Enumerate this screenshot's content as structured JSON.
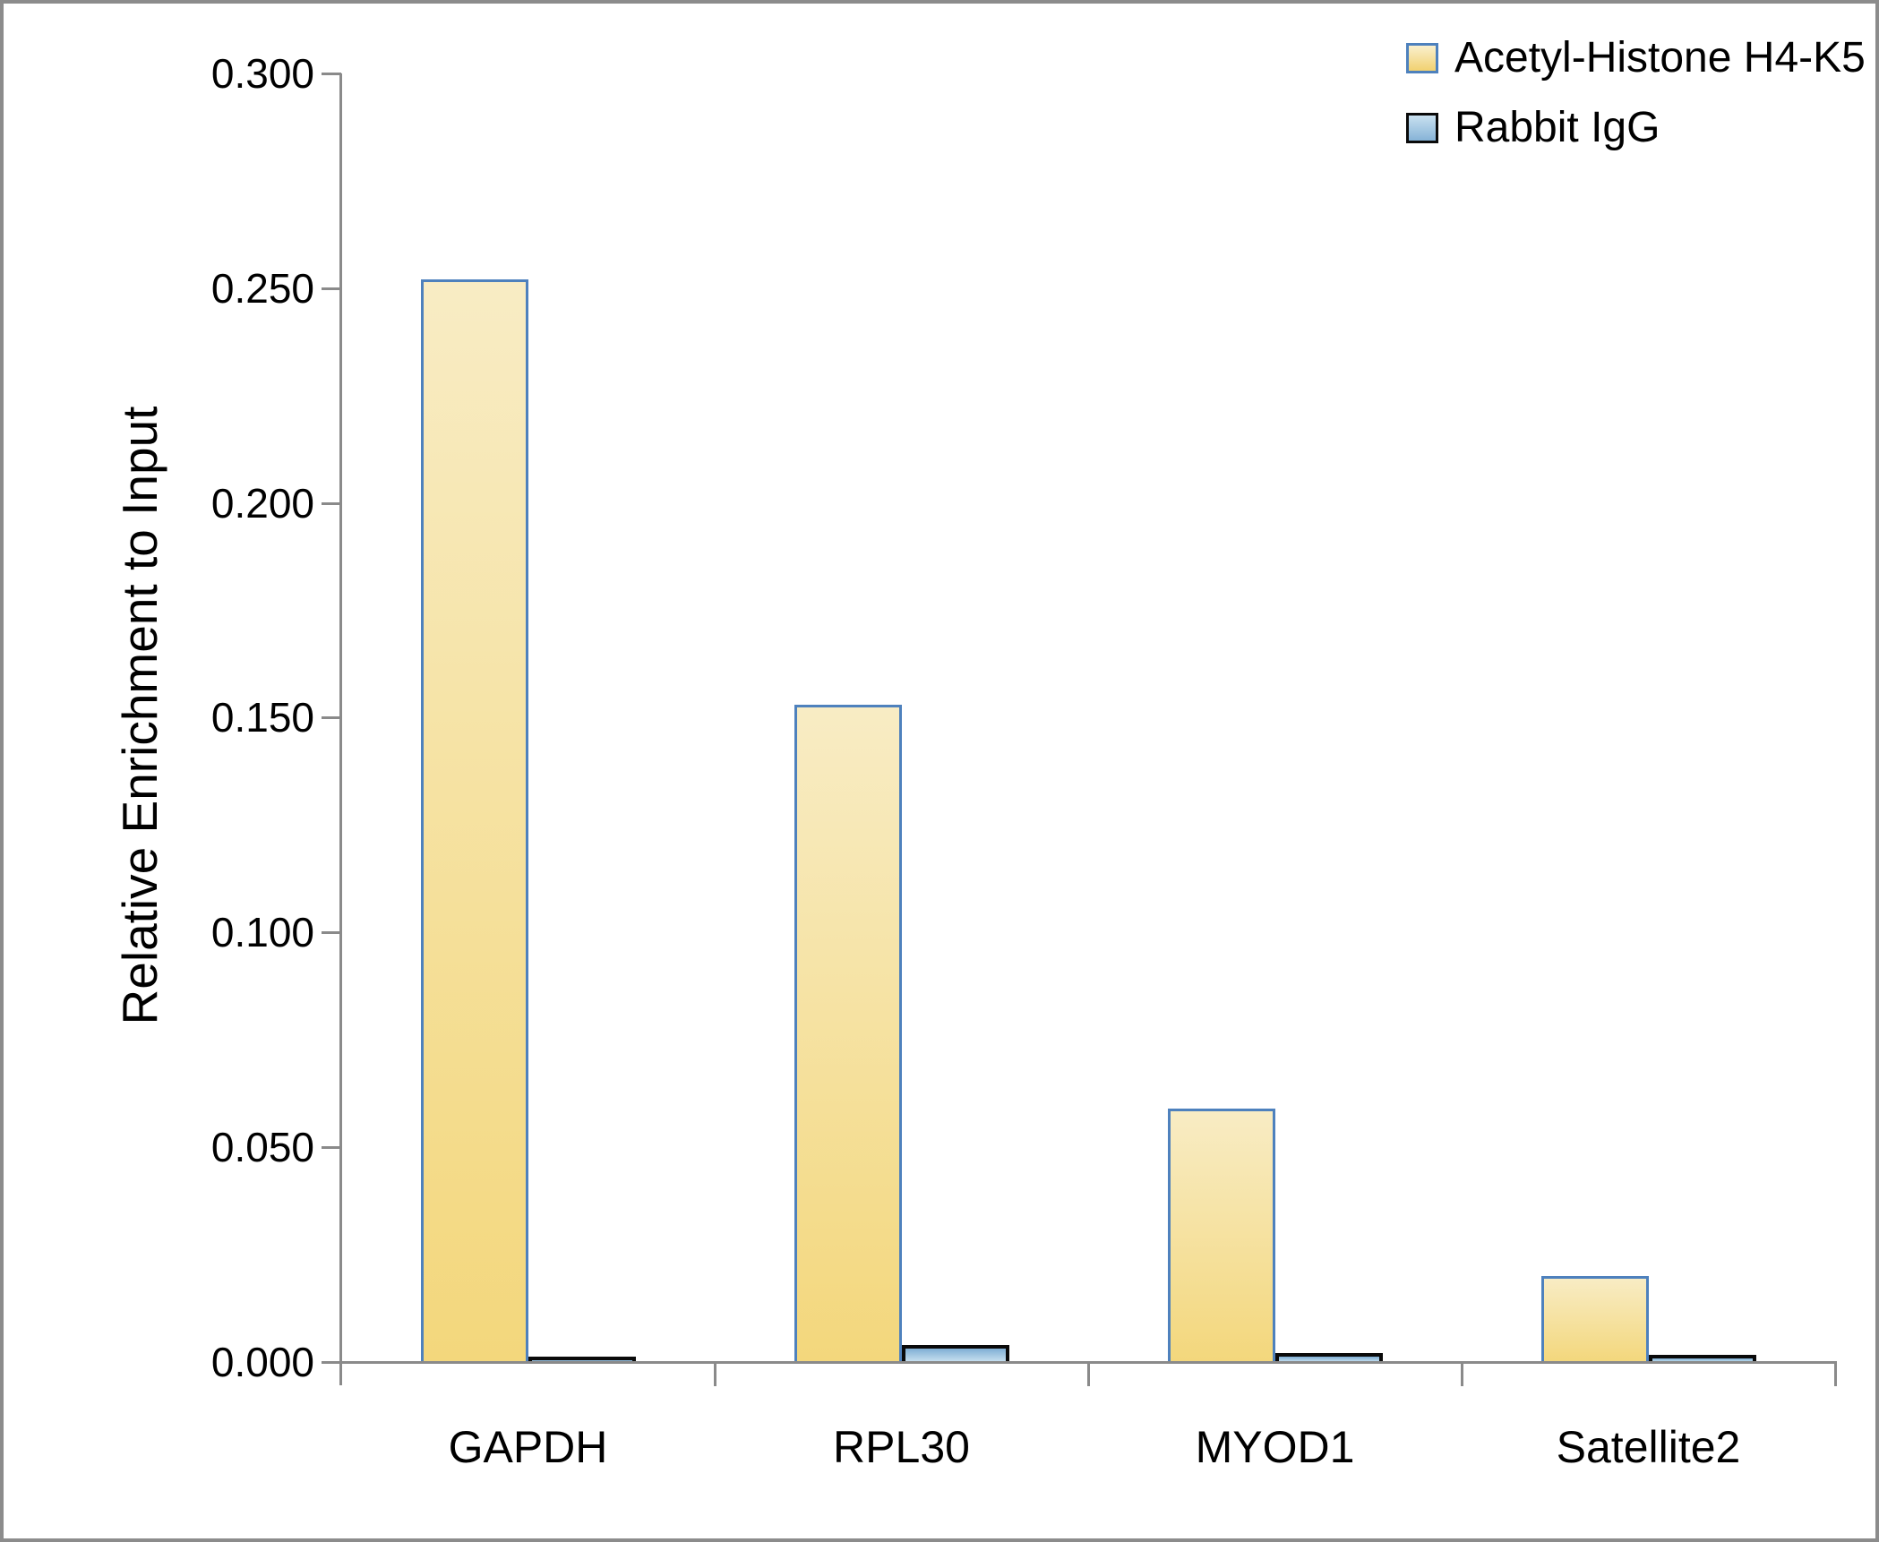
{
  "frame": {
    "background": "#FFFFFF",
    "border_color": "#8C8C8C"
  },
  "axes": {
    "axis_color": "#8A8A8A",
    "text_color": "#000000"
  },
  "legend": {
    "items": [
      {
        "label": "Acetyl-Histone H4-K5"
      },
      {
        "label": "Rabbit IgG"
      }
    ]
  },
  "chart_data": {
    "type": "bar",
    "title": "",
    "xlabel": "",
    "ylabel": "Relative Enrichment to Input",
    "categories": [
      "GAPDH",
      "RPL30",
      "MYOD1",
      "Satellite2"
    ],
    "series": [
      {
        "name": "Acetyl-Histone H4-K5",
        "values": [
          0.252,
          0.153,
          0.059,
          0.02
        ],
        "fill_top": "#F8ECC4",
        "fill_bottom": "#F3D77C",
        "border": "#4E81BD",
        "border_width": 3,
        "legend_top": "#FAF0CE",
        "legend_bottom": "#F1D170"
      },
      {
        "name": "Rabbit IgG",
        "values": [
          0.0012,
          0.004,
          0.002,
          0.0016
        ],
        "fill_top": "#7EAED4",
        "fill_bottom": "#C9E2F1",
        "border": "#0A0A0A",
        "border_width": 4,
        "legend_top": "#C9E1F0",
        "legend_bottom": "#86B3D7"
      }
    ],
    "ylim": [
      0.0,
      0.3
    ],
    "ytick_step": 0.05,
    "ytick_labels": [
      "0.000",
      "0.050",
      "0.100",
      "0.150",
      "0.200",
      "0.250",
      "0.300"
    ],
    "grid": false,
    "legend_position": "top-right"
  }
}
